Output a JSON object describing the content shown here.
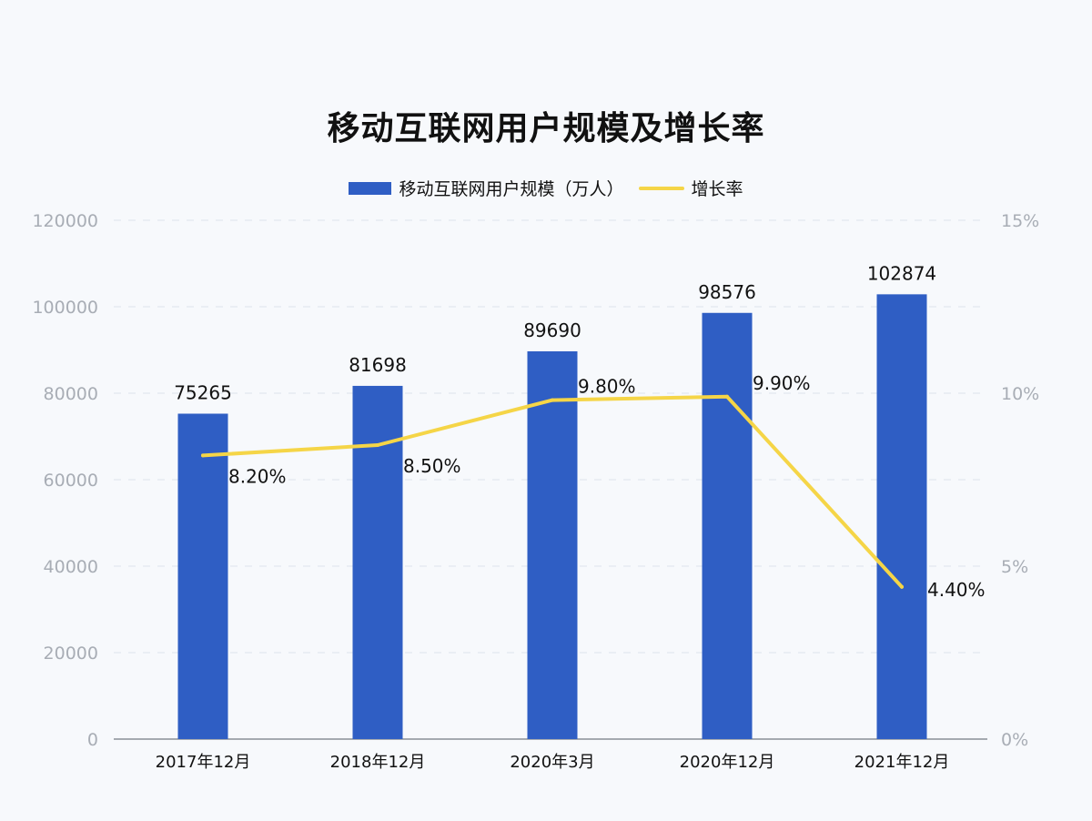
{
  "chart_data": {
    "type": "bar+line",
    "title": "移动互联网用户规模及增长率",
    "categories": [
      "2017年12月",
      "2018年12月",
      "2020年3月",
      "2020年12月",
      "2021年12月"
    ],
    "series": [
      {
        "name": "移动互联网用户规模（万人）",
        "type": "bar",
        "axis": "left",
        "values": [
          75265,
          81698,
          89690,
          98576,
          102874
        ],
        "labels": [
          "75265",
          "81698",
          "89690",
          "98576",
          "102874"
        ],
        "color": "#2f5ec4"
      },
      {
        "name": "增长率",
        "type": "line",
        "axis": "right",
        "values": [
          8.2,
          8.5,
          9.8,
          9.9,
          4.4
        ],
        "labels": [
          "8.20%",
          "8.50%",
          "9.80%",
          "9.90%",
          "4.40%"
        ],
        "color": "#f5d547"
      }
    ],
    "y_left": {
      "range": [
        0,
        120000
      ],
      "ticks": [
        "0",
        "20000",
        "40000",
        "60000",
        "80000",
        "100000",
        "120000"
      ]
    },
    "y_right": {
      "range": [
        0,
        15
      ],
      "ticks": [
        "0%",
        "5%",
        "10%",
        "15%"
      ]
    },
    "grid": true,
    "legend_placement": "top"
  }
}
